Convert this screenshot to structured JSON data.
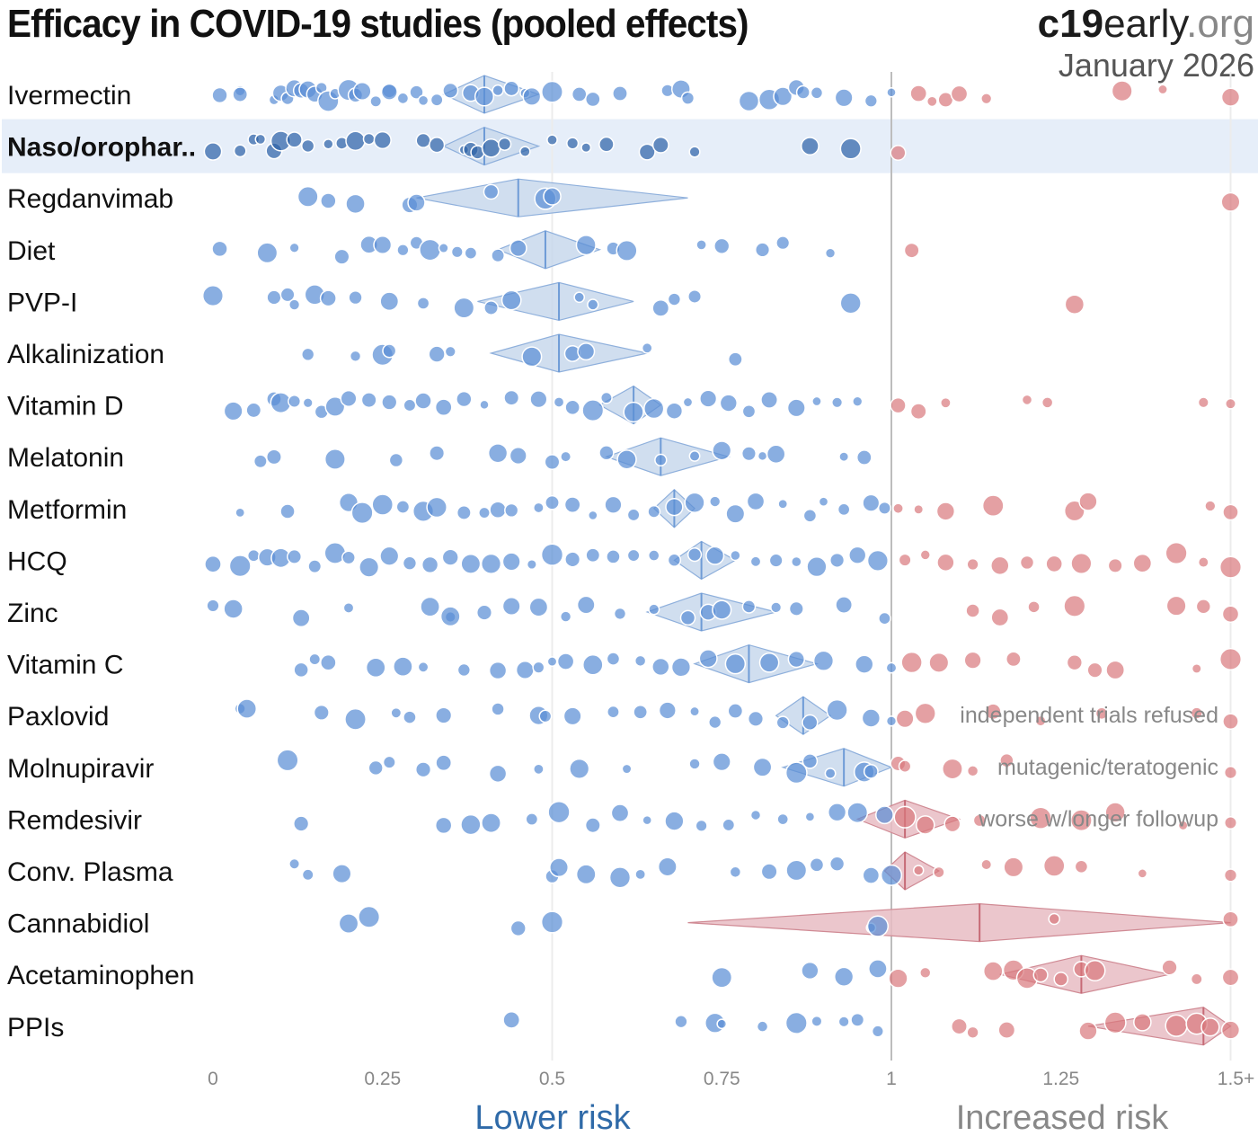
{
  "header": {
    "title": "Efficacy in COVID-19 studies (pooled effects)",
    "brand_bold": "c19",
    "brand_mid": "early",
    "brand_tld": ".org",
    "date": "January 2026"
  },
  "colors": {
    "benefit": "#5b8fd6",
    "benefit_highlight": "#2f64a8",
    "harm": "#d9787c",
    "benefit_diamond": "#c8d8ec",
    "harm_diamond": "#e8bcc3",
    "highlight_band": "#e6eef9",
    "lower_risk_label": "#2f6aa8",
    "increased_risk_label": "#888888"
  },
  "chart_data": {
    "type": "scatter",
    "title": "Efficacy in COVID-19 studies (pooled effects)",
    "xlabel_left": "Lower risk",
    "xlabel_right": "Increased risk",
    "xlim": [
      0,
      1.5
    ],
    "x_ticks": [
      0,
      0.25,
      0.5,
      0.75,
      1,
      1.25,
      1.5
    ],
    "x_tick_labels": [
      "0",
      "0.25",
      "0.5",
      "0.75",
      "1",
      "1.25",
      "1.5+"
    ],
    "reference_line": 1,
    "grid": "vertical at 0.5, 1, 1.5",
    "highlighted_row": "Naso/oropharyngeal",
    "series": [
      {
        "name": "Ivermectin",
        "label": "Ivermectin",
        "pooled": 0.4,
        "ci": [
          0.34,
          0.48
        ],
        "studies": [
          0.01,
          0.04,
          0.04,
          0.09,
          0.1,
          0.11,
          0.12,
          0.13,
          0.14,
          0.15,
          0.16,
          0.17,
          0.18,
          0.2,
          0.21,
          0.22,
          0.24,
          0.26,
          0.26,
          0.28,
          0.3,
          0.31,
          0.33,
          0.35,
          0.38,
          0.4,
          0.42,
          0.44,
          0.46,
          0.47,
          0.5,
          0.54,
          0.56,
          0.6,
          0.67,
          0.69,
          0.7,
          0.79,
          0.82,
          0.84,
          0.86,
          0.87,
          0.89,
          0.93,
          0.97,
          1.0,
          1.04,
          1.06,
          1.08,
          1.1,
          1.14,
          1.34,
          1.4,
          1.5
        ]
      },
      {
        "name": "Naso/oropharyngeal",
        "label": "Naso/orophar..",
        "pooled": 0.4,
        "ci": [
          0.34,
          0.48
        ],
        "studies": [
          0.0,
          0.04,
          0.06,
          0.07,
          0.09,
          0.1,
          0.12,
          0.14,
          0.17,
          0.19,
          0.21,
          0.23,
          0.25,
          0.31,
          0.33,
          0.37,
          0.38,
          0.39,
          0.41,
          0.43,
          0.46,
          0.5,
          0.53,
          0.55,
          0.58,
          0.64,
          0.66,
          0.71,
          0.88,
          0.94,
          1.01
        ]
      },
      {
        "name": "Regdanvimab",
        "label": "Regdanvimab",
        "pooled": 0.45,
        "ci": [
          0.3,
          0.7
        ],
        "studies": [
          0.14,
          0.17,
          0.21,
          0.29,
          0.3,
          0.41,
          0.49,
          0.5,
          1.5
        ]
      },
      {
        "name": "Diet",
        "label": "Diet",
        "pooled": 0.49,
        "ci": [
          0.42,
          0.57
        ],
        "studies": [
          0.01,
          0.08,
          0.12,
          0.19,
          0.23,
          0.25,
          0.28,
          0.3,
          0.32,
          0.34,
          0.36,
          0.38,
          0.42,
          0.45,
          0.55,
          0.59,
          0.61,
          0.72,
          0.75,
          0.81,
          0.84,
          0.91,
          1.03
        ]
      },
      {
        "name": "PVP-I",
        "label": "PVP-I",
        "pooled": 0.51,
        "ci": [
          0.39,
          0.62
        ],
        "studies": [
          0.0,
          0.09,
          0.11,
          0.12,
          0.15,
          0.17,
          0.21,
          0.26,
          0.31,
          0.37,
          0.41,
          0.44,
          0.54,
          0.56,
          0.66,
          0.68,
          0.71,
          0.94,
          1.27
        ]
      },
      {
        "name": "Alkalinization",
        "label": "Alkalinization",
        "pooled": 0.51,
        "ci": [
          0.41,
          0.64
        ],
        "studies": [
          0.14,
          0.21,
          0.25,
          0.26,
          0.33,
          0.35,
          0.47,
          0.53,
          0.55,
          0.64,
          0.77
        ]
      },
      {
        "name": "Vitamin D",
        "label": "Vitamin D",
        "pooled": 0.62,
        "ci": [
          0.57,
          0.66
        ],
        "studies": [
          0.03,
          0.06,
          0.09,
          0.1,
          0.12,
          0.14,
          0.16,
          0.18,
          0.2,
          0.23,
          0.26,
          0.29,
          0.31,
          0.34,
          0.37,
          0.4,
          0.44,
          0.48,
          0.51,
          0.53,
          0.56,
          0.58,
          0.62,
          0.65,
          0.68,
          0.7,
          0.73,
          0.76,
          0.79,
          0.82,
          0.86,
          0.89,
          0.92,
          0.95,
          1.01,
          1.04,
          1.08,
          1.2,
          1.23,
          1.46,
          1.5
        ]
      },
      {
        "name": "Melatonin",
        "label": "Melatonin",
        "pooled": 0.66,
        "ci": [
          0.58,
          0.76
        ],
        "studies": [
          0.07,
          0.09,
          0.18,
          0.27,
          0.33,
          0.42,
          0.45,
          0.5,
          0.52,
          0.58,
          0.61,
          0.66,
          0.71,
          0.75,
          0.79,
          0.81,
          0.83,
          0.93,
          0.96
        ]
      },
      {
        "name": "Metformin",
        "label": "Metformin",
        "pooled": 0.68,
        "ci": [
          0.65,
          0.71
        ],
        "studies": [
          0.04,
          0.11,
          0.2,
          0.22,
          0.25,
          0.28,
          0.31,
          0.33,
          0.37,
          0.4,
          0.42,
          0.44,
          0.48,
          0.5,
          0.53,
          0.56,
          0.59,
          0.62,
          0.65,
          0.68,
          0.71,
          0.74,
          0.77,
          0.8,
          0.84,
          0.88,
          0.9,
          0.93,
          0.97,
          0.99,
          1.01,
          1.04,
          1.08,
          1.15,
          1.27,
          1.29,
          1.47,
          1.5
        ]
      },
      {
        "name": "HCQ",
        "label": "HCQ",
        "pooled": 0.72,
        "ci": [
          0.68,
          0.77
        ],
        "studies": [
          0.0,
          0.04,
          0.06,
          0.08,
          0.1,
          0.12,
          0.15,
          0.18,
          0.2,
          0.23,
          0.26,
          0.29,
          0.32,
          0.35,
          0.38,
          0.41,
          0.44,
          0.47,
          0.5,
          0.53,
          0.56,
          0.59,
          0.62,
          0.65,
          0.68,
          0.71,
          0.74,
          0.77,
          0.8,
          0.83,
          0.86,
          0.89,
          0.92,
          0.95,
          0.98,
          1.02,
          1.05,
          1.08,
          1.12,
          1.16,
          1.2,
          1.24,
          1.28,
          1.33,
          1.37,
          1.42,
          1.46,
          1.5
        ]
      },
      {
        "name": "Zinc",
        "label": "Zinc",
        "pooled": 0.72,
        "ci": [
          0.64,
          0.83
        ],
        "studies": [
          0.0,
          0.03,
          0.13,
          0.2,
          0.32,
          0.35,
          0.35,
          0.4,
          0.44,
          0.48,
          0.52,
          0.55,
          0.6,
          0.65,
          0.7,
          0.73,
          0.75,
          0.79,
          0.83,
          0.86,
          0.93,
          0.99,
          1.12,
          1.16,
          1.21,
          1.27,
          1.42,
          1.46,
          1.5
        ]
      },
      {
        "name": "Vitamin C",
        "label": "Vitamin C",
        "pooled": 0.79,
        "ci": [
          0.71,
          0.89
        ],
        "studies": [
          0.13,
          0.15,
          0.17,
          0.24,
          0.28,
          0.31,
          0.37,
          0.42,
          0.46,
          0.48,
          0.5,
          0.52,
          0.56,
          0.59,
          0.63,
          0.66,
          0.69,
          0.73,
          0.77,
          0.82,
          0.86,
          0.9,
          0.96,
          1.0,
          1.03,
          1.07,
          1.12,
          1.18,
          1.27,
          1.3,
          1.33,
          1.45,
          1.5
        ]
      },
      {
        "name": "Paxlovid",
        "label": "Paxlovid",
        "pooled": 0.87,
        "ci": [
          0.83,
          0.91
        ],
        "studies": [
          0.04,
          0.05,
          0.16,
          0.21,
          0.27,
          0.29,
          0.34,
          0.42,
          0.48,
          0.49,
          0.53,
          0.59,
          0.63,
          0.67,
          0.71,
          0.74,
          0.77,
          0.8,
          0.84,
          0.88,
          0.92,
          0.97,
          1.0,
          1.02,
          1.05,
          1.15,
          1.22,
          1.31,
          1.45,
          1.5
        ]
      },
      {
        "name": "Molnupiravir",
        "label": "Molnupiravir",
        "pooled": 0.93,
        "ci": [
          0.84,
          1.0
        ],
        "studies": [
          0.11,
          0.24,
          0.26,
          0.31,
          0.34,
          0.42,
          0.48,
          0.54,
          0.61,
          0.71,
          0.75,
          0.81,
          0.86,
          0.88,
          0.91,
          0.96,
          0.97,
          1.01,
          1.02,
          1.09,
          1.12,
          1.17,
          1.5
        ]
      },
      {
        "name": "Remdesivir",
        "label": "Remdesivir",
        "pooled": 1.02,
        "ci": [
          0.95,
          1.1
        ],
        "studies": [
          0.13,
          0.34,
          0.38,
          0.41,
          0.47,
          0.51,
          0.56,
          0.6,
          0.64,
          0.68,
          0.72,
          0.76,
          0.8,
          0.84,
          0.88,
          0.92,
          0.95,
          0.99,
          1.02,
          1.05,
          1.09,
          1.13,
          1.22,
          1.28,
          1.33,
          1.43,
          1.5
        ]
      },
      {
        "name": "Conv. Plasma",
        "label": "Conv. Plasma",
        "pooled": 1.02,
        "ci": [
          0.99,
          1.07
        ],
        "studies": [
          0.12,
          0.14,
          0.19,
          0.5,
          0.51,
          0.55,
          0.6,
          0.63,
          0.67,
          0.77,
          0.82,
          0.86,
          0.89,
          0.92,
          0.97,
          1.0,
          1.04,
          1.07,
          1.14,
          1.18,
          1.24,
          1.28,
          1.37,
          1.5
        ]
      },
      {
        "name": "Cannabidiol",
        "label": "Cannabidiol",
        "pooled": 1.13,
        "ci": [
          0.7,
          1.6
        ],
        "studies": [
          0.2,
          0.23,
          0.45,
          0.5,
          0.97,
          0.98,
          1.24,
          1.5
        ]
      },
      {
        "name": "Acetaminophen",
        "label": "Acetaminophen",
        "pooled": 1.28,
        "ci": [
          1.16,
          1.41
        ],
        "studies": [
          0.75,
          0.88,
          0.93,
          0.98,
          1.01,
          1.05,
          1.15,
          1.18,
          1.2,
          1.22,
          1.25,
          1.28,
          1.3,
          1.41,
          1.45,
          1.5
        ]
      },
      {
        "name": "PPIs",
        "label": "PPIs",
        "pooled": 1.46,
        "ci": [
          1.29,
          1.6
        ],
        "studies": [
          0.44,
          0.69,
          0.74,
          0.75,
          0.81,
          0.86,
          0.89,
          0.93,
          0.95,
          0.98,
          1.1,
          1.12,
          1.17,
          1.29,
          1.33,
          1.37,
          1.42,
          1.45,
          1.47,
          1.5
        ]
      }
    ],
    "annotations": [
      {
        "row": "Paxlovid",
        "text": "independent trials refused"
      },
      {
        "row": "Molnupiravir",
        "text": "mutagenic/teratogenic"
      },
      {
        "row": "Remdesivir",
        "text": "worse w/longer followup"
      }
    ]
  }
}
